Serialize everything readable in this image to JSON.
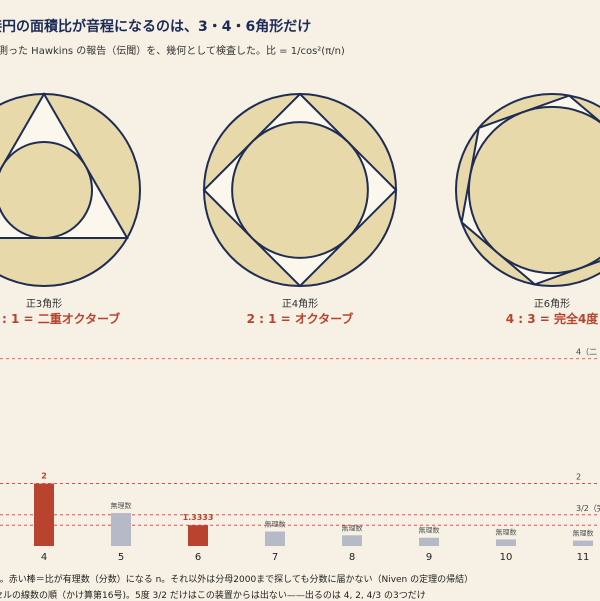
{
  "title": "接円の面積比が音程になるのは、3・4・6角形だけ",
  "subtitle": "を測った Hawkins の報告（伝聞）を、幾何として検査した。比 = 1/cos²(π/n)",
  "colors": {
    "fill": "#e8d9ab",
    "stroke": "#1f2d52",
    "rational": "#b8432e",
    "irrational": "#b6b9c6",
    "ref": "#d23a3a"
  },
  "figures": [
    {
      "n": 3,
      "name": "正3角形",
      "ratio": ": 1 = 二重オクターブ"
    },
    {
      "n": 4,
      "name": "正4角形",
      "ratio": "2 : 1 = オクターブ"
    },
    {
      "n": 6,
      "name": "正6角形",
      "ratio": "4 : 3 = 完全4度"
    }
  ],
  "chart_data": {
    "type": "bar",
    "categories": [
      "4",
      "5",
      "6",
      "7",
      "8",
      "9",
      "10",
      "11"
    ],
    "values": [
      2,
      1.5279,
      1.3333,
      1.2319,
      1.1716,
      1.1325,
      1.1056,
      1.0862
    ],
    "rational": [
      true,
      false,
      true,
      false,
      false,
      false,
      false,
      false
    ],
    "value_labels": [
      "2",
      "無理数",
      "1.3333",
      "無理数",
      "無理数",
      "無理数",
      "無理数",
      "無理数"
    ],
    "reference_lines": [
      {
        "value": 4,
        "label": "4（二"
      },
      {
        "value": 2,
        "label": "2"
      },
      {
        "value": 1.5,
        "label": "3/2（完全5"
      },
      {
        "value": 1.3333,
        "label": ""
      }
    ],
    "ylim": [
      1,
      4.3
    ]
  },
  "footnotes": [
    "n。赤い棒＝比が有理数（分数）になる n。それ以外は分母2000まで探しても分数に届かない（Niven の定理の帰結）",
    "セルの線数の順（かけ算第16号)。5度 3/2 だけはこの装置からは出ない——出るのは 4, 2, 4/3 の3つだけ"
  ]
}
